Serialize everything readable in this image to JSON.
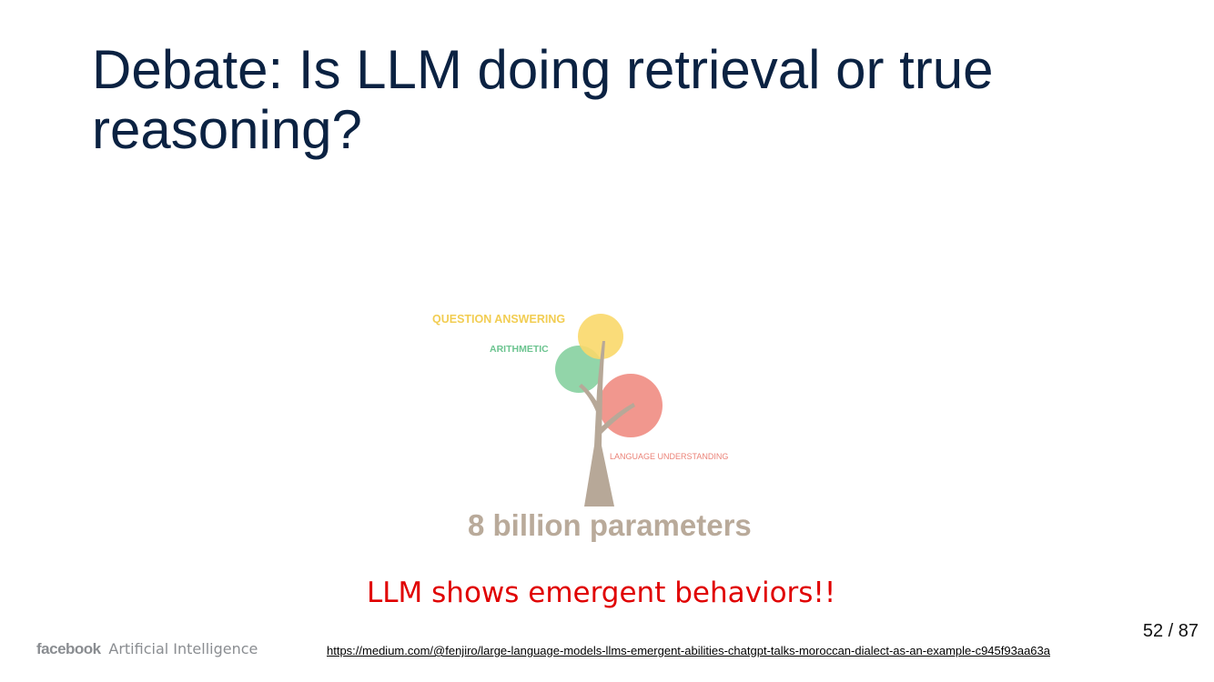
{
  "slide": {
    "title": "Debate: Is LLM doing retrieval or true reasoning?",
    "page_current": "52",
    "page_separator": "/",
    "page_total": "87",
    "page_label": "52 / 87"
  },
  "figure": {
    "labels": {
      "question_answering": "QUESTION ANSWERING",
      "arithmetic": "ARITHMETIC",
      "language_understanding": "LANGUAGE UNDERSTANDING"
    },
    "parameters_text": "8 billion parameters",
    "colors": {
      "question_answering": "#f9d86a",
      "arithmetic": "#86d0a0",
      "language_understanding": "#f08c82",
      "trunk": "#b7a898"
    }
  },
  "caption": {
    "text": "LLM shows emergent behaviors!!",
    "color": "#e00000"
  },
  "footer": {
    "brand_facebook": "facebook",
    "brand_ai": "Artificial Intelligence",
    "source_link": "https://medium.com/@fenjiro/large-language-models-llms-emergent-abilities-chatgpt-talks-moroccan-dialect-as-an-example-c945f93aa63a"
  }
}
